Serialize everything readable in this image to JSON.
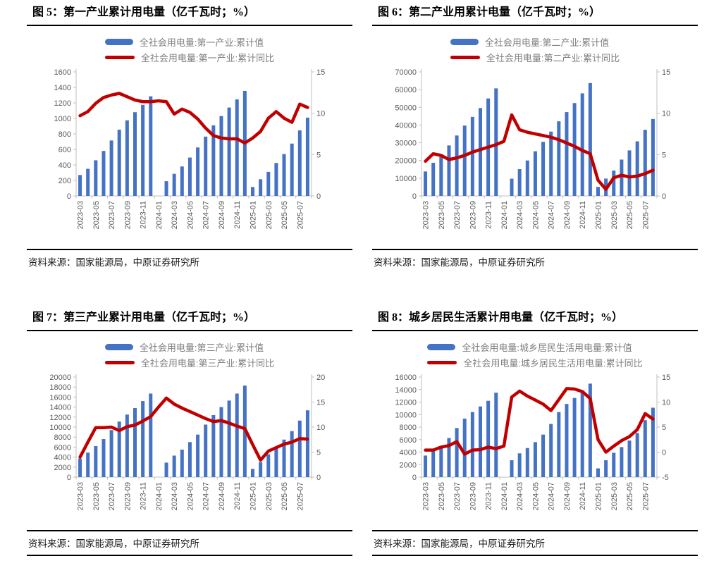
{
  "colors": {
    "bar": "#4472C4",
    "line": "#C00000",
    "axis_text": "#595959",
    "legend_text": "#7F7F7F",
    "spine": "#BFBFBF",
    "rule": "#000000"
  },
  "chart_data": [
    {
      "type": "bar-line-combo",
      "title": "图 5：第一产业累计用电量（亿千瓦时；%）",
      "source": "资料来源：国家能源局，中原证券研究所",
      "categories": [
        "2023-03",
        "2023-04",
        "2023-05",
        "2023-06",
        "2023-07",
        "2023-08",
        "2023-09",
        "2023-10",
        "2023-11",
        "2023-12",
        "2024-01",
        "2024-02",
        "2024-03",
        "2024-04",
        "2024-05",
        "2024-06",
        "2024-07",
        "2024-08",
        "2024-09",
        "2024-10",
        "2024-11",
        "2024-12",
        "2025-01",
        "2025-02",
        "2025-03",
        "2025-04",
        "2025-05",
        "2025-06",
        "2025-07",
        "2025-08"
      ],
      "x_tick_labels": [
        "2023-03",
        "2023-05",
        "2023-07",
        "2023-09",
        "2023-11",
        "2024-01",
        "2024-03",
        "2024-05",
        "2024-07",
        "2024-09",
        "2024-11",
        "2025-01",
        "2025-03",
        "2025-05",
        "2025-07"
      ],
      "left_axis": {
        "min": 0,
        "max": 1600,
        "step": 200
      },
      "right_axis": {
        "min": 0,
        "max": 15,
        "step": 5
      },
      "series": [
        {
          "name": "全社会用电量:第一产业:累计值",
          "type": "bar",
          "axis": "left",
          "values": [
            270,
            350,
            460,
            580,
            715,
            855,
            975,
            1080,
            1175,
            1285,
            null,
            190,
            285,
            380,
            495,
            625,
            765,
            910,
            1030,
            1140,
            1245,
            1355,
            115,
            215,
            310,
            425,
            540,
            675,
            845,
            1010
          ]
        },
        {
          "name": "全社会用电量:第一产业:累计同比",
          "type": "line",
          "axis": "right",
          "values": [
            9.7,
            10.2,
            11.2,
            11.9,
            12.2,
            12.4,
            12.0,
            11.6,
            11.4,
            11.4,
            11.5,
            11.4,
            9.9,
            10.5,
            10.1,
            9.3,
            8.2,
            7.3,
            7.0,
            6.9,
            6.9,
            6.4,
            7.0,
            7.8,
            9.4,
            10.2,
            9.4,
            8.9,
            11.1,
            10.7
          ]
        }
      ]
    },
    {
      "type": "bar-line-combo",
      "title": "图 6：第二产业用累计电量（亿千瓦时；%）",
      "source": "资料来源：国家能源局，中原证券研究所",
      "categories": [
        "2023-03",
        "2023-04",
        "2023-05",
        "2023-06",
        "2023-07",
        "2023-08",
        "2023-09",
        "2023-10",
        "2023-11",
        "2023-12",
        "2024-01",
        "2024-02",
        "2024-03",
        "2024-04",
        "2024-05",
        "2024-06",
        "2024-07",
        "2024-08",
        "2024-09",
        "2024-10",
        "2024-11",
        "2024-12",
        "2025-01",
        "2025-02",
        "2025-03",
        "2025-04",
        "2025-05",
        "2025-06",
        "2025-07",
        "2025-08"
      ],
      "x_tick_labels": [
        "2023-03",
        "2023-05",
        "2023-07",
        "2023-09",
        "2023-11",
        "2024-01",
        "2024-03",
        "2024-05",
        "2024-07",
        "2024-09",
        "2024-11",
        "2025-01",
        "2025-03",
        "2025-05",
        "2025-07"
      ],
      "left_axis": {
        "min": 0,
        "max": 70000,
        "step": 10000
      },
      "right_axis": {
        "min": 0,
        "max": 15,
        "step": 5
      },
      "series": [
        {
          "name": "全社会用电量:第二产业:累计值",
          "type": "bar",
          "axis": "left",
          "values": [
            13800,
            18700,
            23100,
            28500,
            34100,
            39700,
            44600,
            49600,
            55000,
            60700,
            null,
            9700,
            15100,
            20000,
            25200,
            30500,
            36300,
            42100,
            47300,
            52400,
            57900,
            63700,
            5100,
            9800,
            14300,
            20500,
            25700,
            30800,
            37300,
            43400
          ]
        },
        {
          "name": "全社会用电量:第二产业:累计同比",
          "type": "line",
          "axis": "right",
          "values": [
            4.2,
            5.1,
            4.9,
            4.4,
            4.6,
            4.9,
            5.3,
            5.6,
            5.9,
            6.2,
            6.6,
            9.8,
            8.0,
            7.7,
            7.5,
            7.3,
            7.1,
            6.8,
            6.4,
            6.0,
            5.5,
            5.1,
            1.9,
            0.8,
            2.2,
            2.5,
            2.3,
            2.4,
            2.7,
            3.1
          ]
        }
      ]
    },
    {
      "type": "bar-line-combo",
      "title": "图 7：第三产业累计用电量（亿千瓦时；%）",
      "source": "资料来源：国家能源局，中原证券研究所",
      "categories": [
        "2023-03",
        "2023-04",
        "2023-05",
        "2023-06",
        "2023-07",
        "2023-08",
        "2023-09",
        "2023-10",
        "2023-11",
        "2023-12",
        "2024-01",
        "2024-02",
        "2024-03",
        "2024-04",
        "2024-05",
        "2024-06",
        "2024-07",
        "2024-08",
        "2024-09",
        "2024-10",
        "2024-11",
        "2024-12",
        "2025-01",
        "2025-02",
        "2025-03",
        "2025-04",
        "2025-05",
        "2025-06",
        "2025-07",
        "2025-08"
      ],
      "x_tick_labels": [
        "2023-03",
        "2023-05",
        "2023-07",
        "2023-09",
        "2023-11",
        "2024-01",
        "2024-03",
        "2024-05",
        "2024-07",
        "2024-09",
        "2024-11",
        "2025-01",
        "2025-03",
        "2025-05",
        "2025-07"
      ],
      "left_axis": {
        "min": 0,
        "max": 20000,
        "step": 2000
      },
      "right_axis": {
        "min": 0,
        "max": 20,
        "step": 5
      },
      "series": [
        {
          "name": "全社会用电量:第三产业:累计值",
          "type": "bar",
          "axis": "left",
          "values": [
            3700,
            4900,
            6200,
            7600,
            9400,
            11100,
            12500,
            13800,
            15200,
            16700,
            null,
            2900,
            4300,
            5500,
            7000,
            8500,
            10500,
            12400,
            14000,
            15300,
            16700,
            18300,
            1650,
            3000,
            4550,
            5950,
            7500,
            9200,
            11300,
            13350
          ]
        },
        {
          "name": "全社会用电量:第三产业:累计同比",
          "type": "line",
          "axis": "right",
          "values": [
            4.0,
            7.0,
            9.9,
            9.9,
            10.0,
            9.3,
            10.1,
            10.4,
            11.2,
            12.1,
            14.0,
            15.8,
            14.6,
            13.8,
            13.1,
            12.4,
            11.7,
            11.1,
            11.3,
            10.8,
            10.2,
            9.7,
            6.5,
            3.4,
            5.2,
            5.9,
            6.6,
            7.0,
            7.7,
            7.6
          ]
        }
      ]
    },
    {
      "type": "bar-line-combo",
      "title": "图 8：城乡居民生活累计用电量（亿千瓦时；%）",
      "source": "资料来源：国家能源局，中原证券研究所",
      "categories": [
        "2023-03",
        "2023-04",
        "2023-05",
        "2023-06",
        "2023-07",
        "2023-08",
        "2023-09",
        "2023-10",
        "2023-11",
        "2023-12",
        "2024-01",
        "2024-02",
        "2024-03",
        "2024-04",
        "2024-05",
        "2024-06",
        "2024-07",
        "2024-08",
        "2024-09",
        "2024-10",
        "2024-11",
        "2024-12",
        "2025-01",
        "2025-02",
        "2025-03",
        "2025-04",
        "2025-05",
        "2025-06",
        "2025-07",
        "2025-08"
      ],
      "x_tick_labels": [
        "2023-03",
        "2023-05",
        "2023-07",
        "2023-09",
        "2023-11",
        "2024-01",
        "2024-03",
        "2024-05",
        "2024-07",
        "2024-09",
        "2024-11",
        "2025-01",
        "2025-03",
        "2025-05",
        "2025-07"
      ],
      "left_axis": {
        "min": 0,
        "max": 16000,
        "step": 2000
      },
      "right_axis": {
        "min": -5,
        "max": 15,
        "step": 5
      },
      "series": [
        {
          "name": "全社会用电量:城乡居民生活用电量:累计值",
          "type": "bar",
          "axis": "left",
          "values": [
            3450,
            4150,
            4800,
            6250,
            7850,
            9350,
            10400,
            11300,
            12200,
            13500,
            null,
            2700,
            3800,
            4650,
            5600,
            6800,
            8500,
            10400,
            11700,
            12650,
            13700,
            14950,
            1400,
            2700,
            3900,
            4800,
            5850,
            7050,
            9100,
            11100
          ]
        },
        {
          "name": "全社会用电量:城乡居民生活用电量:累计同比",
          "type": "line",
          "axis": "right",
          "values": [
            0.4,
            0.4,
            1.0,
            1.3,
            2.1,
            -0.4,
            0.4,
            0.5,
            1.0,
            0.7,
            1.2,
            11.0,
            12.2,
            11.2,
            10.4,
            9.6,
            8.3,
            10.5,
            12.7,
            12.6,
            12.1,
            10.7,
            2.5,
            0.0,
            1.2,
            2.3,
            3.1,
            4.5,
            7.7,
            6.6
          ]
        }
      ]
    }
  ]
}
